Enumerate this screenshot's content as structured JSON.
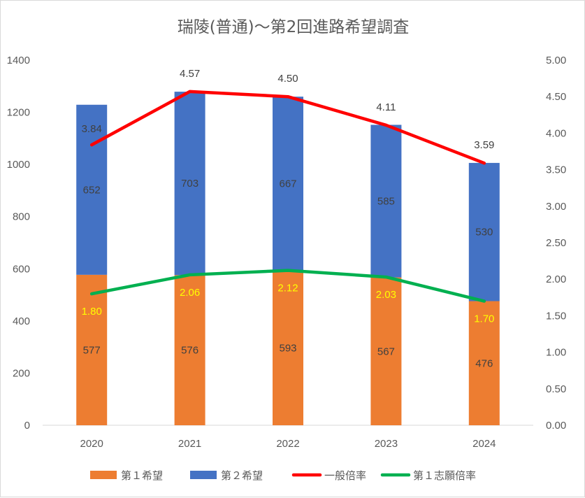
{
  "chart_data": {
    "type": "bar",
    "title": "瑞陵(普通)〜第2回進路希望調査",
    "categories": [
      "2020",
      "2021",
      "2022",
      "2023",
      "2024"
    ],
    "stacked": true,
    "series": [
      {
        "name": "第１希望",
        "type": "bar",
        "axis": "left",
        "color": "#ED7D31",
        "values": [
          577,
          576,
          593,
          567,
          476
        ],
        "label_color": "#404040"
      },
      {
        "name": "第２希望",
        "type": "bar",
        "axis": "left",
        "color": "#4472C4",
        "values": [
          652,
          703,
          667,
          585,
          530
        ],
        "label_color": "#404040"
      },
      {
        "name": "一般倍率",
        "type": "line",
        "axis": "right",
        "color": "#FF0000",
        "values": [
          3.84,
          4.57,
          4.5,
          4.11,
          3.59
        ],
        "labels": [
          "3.84",
          "4.57",
          "4.50",
          "4.11",
          "3.59"
        ],
        "label_color": "#404040"
      },
      {
        "name": "第１志願倍率",
        "type": "line",
        "axis": "right",
        "color": "#00B050",
        "values": [
          1.8,
          2.06,
          2.12,
          2.03,
          1.7
        ],
        "labels": [
          "1.80",
          "2.06",
          "2.12",
          "2.03",
          "1.70"
        ],
        "label_color": "#FFFF00"
      }
    ],
    "y_left": {
      "min": 0,
      "max": 1400,
      "ticks": [
        "0",
        "200",
        "400",
        "600",
        "800",
        "1000",
        "1200",
        "1400"
      ]
    },
    "y_right": {
      "min": 0,
      "max": 5,
      "ticks": [
        "0.00",
        "0.50",
        "1.00",
        "1.50",
        "2.00",
        "2.50",
        "3.00",
        "3.50",
        "4.00",
        "4.50",
        "5.00"
      ]
    },
    "grid": false,
    "legend_position": "bottom"
  }
}
